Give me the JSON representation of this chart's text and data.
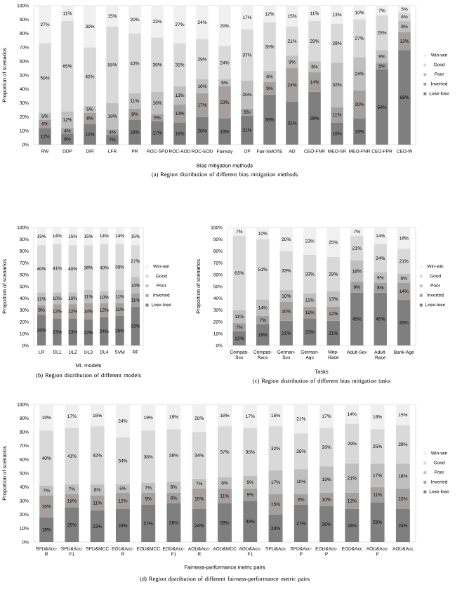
{
  "chart_data": [
    {
      "type": "bar",
      "stacked": true,
      "legend": "right",
      "title": "(a) Region distribution of different bias mitigation methods",
      "xlabel": "Bias mitigation methods",
      "ylabel": "Proportion of scenarios",
      "ylim": [
        0,
        100
      ],
      "yticks": [
        {
          "value": 0,
          "label": "0%"
        },
        {
          "value": 10,
          "label": "10%"
        },
        {
          "value": 20,
          "label": "20%"
        },
        {
          "value": 30,
          "label": "30%"
        },
        {
          "value": 40,
          "label": "40%"
        },
        {
          "value": 50,
          "label": "50%"
        },
        {
          "value": 60,
          "label": "60%"
        },
        {
          "value": 70,
          "label": "70%"
        },
        {
          "value": 80,
          "label": "80%"
        },
        {
          "value": 90,
          "label": "90%"
        },
        {
          "value": 100,
          "label": "100%"
        }
      ],
      "categories": [
        "RW",
        "DDP",
        "DIR",
        "LFR",
        "PR",
        "ROC-SPD",
        "ROC-AOD",
        "ROC-EOD",
        "Fairway",
        "OP",
        "Fair-SMOTE",
        "AD",
        "CEO-FNR",
        "MEO-SR",
        "MEO-FNR",
        "CEO-FPR",
        "CEO-W"
      ],
      "series": [
        {
          "name": "Lose-lose",
          "color": "#7f7f7f",
          "values": [
            12,
            8,
            15,
            7,
            18,
            17,
            16,
            20,
            19,
            21,
            36,
            31,
            38,
            16,
            19,
            54,
            68
          ],
          "value_labels": [
            "12%",
            "8%",
            "15%",
            "7%",
            "18%",
            "17%",
            "16%",
            "20%",
            "19%",
            "21%",
            "36%",
            "31%",
            "38%",
            "16%",
            "19%",
            "54%",
            "68%"
          ]
        },
        {
          "name": "Inverted",
          "color": "#a69f9f",
          "values": [
            6,
            4,
            8,
            4,
            8,
            5,
            13,
            17,
            23,
            5,
            9,
            24,
            14,
            11,
            20,
            5,
            13
          ],
          "value_labels": [
            "6%",
            "4%",
            "8%",
            "4%",
            "8%",
            "5%",
            "13%",
            "17%",
            "23%",
            "5%",
            "9%",
            "24%",
            "14%",
            "11%",
            "20%",
            "5%",
            "13%"
          ]
        },
        {
          "name": "Poor",
          "color": "#bfbfbf",
          "values": [
            5,
            12,
            5,
            19,
            11,
            16,
            13,
            10,
            5,
            20,
            8,
            9,
            8,
            32,
            24,
            9,
            8
          ],
          "value_labels": [
            "5%",
            "12%",
            "5%",
            "19%",
            "11%",
            "16%",
            "13%",
            "10%",
            "5%",
            "20%",
            "8%",
            "9%",
            "8%",
            "32%",
            "24%",
            "9%",
            "8%"
          ]
        },
        {
          "name": "Good",
          "color": "#d9d9d9",
          "values": [
            50,
            65,
            42,
            55,
            43,
            39,
            31,
            29,
            24,
            37,
            35,
            21,
            29,
            28,
            27,
            25,
            6
          ],
          "value_labels": [
            "50%",
            "65%",
            "42%",
            "55%",
            "43%",
            "39%",
            "31%",
            "29%",
            "24%",
            "37%",
            "35%",
            "21%",
            "29%",
            "28%",
            "27%",
            "25%",
            "6%"
          ]
        },
        {
          "name": "Win-win",
          "color": "#f0f0f0",
          "values": [
            27,
            11,
            30,
            15,
            20,
            23,
            27,
            24,
            29,
            17,
            12,
            15,
            11,
            13,
            10,
            7,
            5
          ],
          "value_labels": [
            "27%",
            "11%",
            "30%",
            "15%",
            "20%",
            "23%",
            "27%",
            "24%",
            "29%",
            "17%",
            "12%",
            "15%",
            "11%",
            "13%",
            "10%",
            "7%",
            "5%"
          ]
        }
      ]
    },
    {
      "type": "bar",
      "stacked": true,
      "legend": "right",
      "title": "(b) Region distribution of different models",
      "xlabel": "ML models",
      "ylabel": "Proportion of scenarios",
      "ylim": [
        0,
        100
      ],
      "yticks": [
        {
          "value": 0,
          "label": "0%"
        },
        {
          "value": 10,
          "label": "10%"
        },
        {
          "value": 20,
          "label": "20%"
        },
        {
          "value": 30,
          "label": "30%"
        },
        {
          "value": 40,
          "label": "40%"
        },
        {
          "value": 50,
          "label": "50%"
        },
        {
          "value": 60,
          "label": "60%"
        },
        {
          "value": 70,
          "label": "70%"
        },
        {
          "value": 80,
          "label": "80%"
        },
        {
          "value": 90,
          "label": "90%"
        },
        {
          "value": 100,
          "label": "100%"
        }
      ],
      "categories": [
        "LR",
        "DL1",
        "DL2",
        "DL3",
        "DL4",
        "SVM",
        "RF"
      ],
      "series": [
        {
          "name": "Lose-lose",
          "color": "#7f7f7f",
          "values": [
            26,
            23,
            23,
            22,
            24,
            25,
            33
          ],
          "value_labels": [
            "26%",
            "23%",
            "23%",
            "22%",
            "24%",
            "25%",
            "33%"
          ]
        },
        {
          "name": "Inverted",
          "color": "#a69f9f",
          "values": [
            8,
            12,
            12,
            14,
            12,
            11,
            11
          ],
          "value_labels": [
            "8%",
            "12%",
            "12%",
            "14%",
            "12%",
            "11%",
            "11%"
          ]
        },
        {
          "name": "Poor",
          "color": "#bfbfbf",
          "values": [
            11,
            10,
            10,
            11,
            10,
            11,
            14
          ],
          "value_labels": [
            "11%",
            "10%",
            "10%",
            "11%",
            "10%",
            "11%",
            "14%"
          ]
        },
        {
          "name": "Good",
          "color": "#d9d9d9",
          "values": [
            40,
            41,
            40,
            38,
            40,
            39,
            27
          ],
          "value_labels": [
            "40%",
            "41%",
            "40%",
            "38%",
            "40%",
            "39%",
            "27%"
          ]
        },
        {
          "name": "Win-win",
          "color": "#f0f0f0",
          "values": [
            15,
            14,
            15,
            15,
            14,
            14,
            15
          ],
          "value_labels": [
            "15%",
            "14%",
            "15%",
            "15%",
            "14%",
            "14%",
            "15%"
          ]
        }
      ]
    },
    {
      "type": "bar",
      "stacked": true,
      "legend": "right",
      "title": "(c) Region distribution of different bias mitigation tasks",
      "xlabel": "Tasks",
      "ylabel": "Proportion of scenarios",
      "ylim": [
        0,
        100
      ],
      "yticks": [
        {
          "value": 0,
          "label": "0%"
        },
        {
          "value": 10,
          "label": "10%"
        },
        {
          "value": 20,
          "label": "20%"
        },
        {
          "value": 30,
          "label": "30%"
        },
        {
          "value": 40,
          "label": "40%"
        },
        {
          "value": 50,
          "label": "50%"
        },
        {
          "value": 60,
          "label": "60%"
        },
        {
          "value": 70,
          "label": "70%"
        },
        {
          "value": 80,
          "label": "80%"
        },
        {
          "value": 90,
          "label": "90%"
        },
        {
          "value": 100,
          "label": "100%"
        }
      ],
      "categories": [
        "Compas-Sex",
        "Compas-Race",
        "German-Sex",
        "German-Age",
        "Mep-Race",
        "Adult-Sex",
        "Adult-Race",
        "Bank-Age"
      ],
      "series": [
        {
          "name": "Lose-lose",
          "color": "#7f7f7f",
          "values": [
            12,
            18,
            21,
            23,
            21,
            45,
            45,
            39
          ],
          "value_labels": [
            "12%",
            "18%",
            "21%",
            "23%",
            "21%",
            "45%",
            "45%",
            "39%"
          ]
        },
        {
          "name": "Inverted",
          "color": "#a69f9f",
          "values": [
            7,
            7,
            16,
            10,
            12,
            9,
            8,
            14
          ],
          "value_labels": [
            "7%",
            "7%",
            "16%",
            "10%",
            "12%",
            "9%",
            "8%",
            "14%"
          ]
        },
        {
          "name": "Poor",
          "color": "#bfbfbf",
          "values": [
            11,
            14,
            10,
            11,
            13,
            18,
            9,
            8
          ],
          "value_labels": [
            "11%",
            "14%",
            "10%",
            "11%",
            "13%",
            "18%",
            "9%",
            "8%"
          ]
        },
        {
          "name": "Good",
          "color": "#d9d9d9",
          "values": [
            63,
            51,
            33,
            33,
            29,
            21,
            24,
            21
          ],
          "value_labels": [
            "63%",
            "51%",
            "33%",
            "33%",
            "29%",
            "21%",
            "24%",
            "21%"
          ]
        },
        {
          "name": "Win-win",
          "color": "#f0f0f0",
          "values": [
            7,
            10,
            20,
            23,
            25,
            7,
            14,
            18
          ],
          "value_labels": [
            "7%",
            "10%",
            "20%",
            "23%",
            "25%",
            "7%",
            "14%",
            "18%"
          ]
        }
      ]
    },
    {
      "type": "bar",
      "stacked": true,
      "legend": "right",
      "title": "(d) Region distribution of different fairness-performance metric pairs",
      "xlabel": "Fairness-performance metric pairs",
      "ylabel": "Proportion of scenarios",
      "ylim": [
        0,
        100
      ],
      "yticks": [
        {
          "value": 0,
          "label": "0%"
        },
        {
          "value": 10,
          "label": "10%"
        },
        {
          "value": 20,
          "label": "20%"
        },
        {
          "value": 30,
          "label": "30%"
        },
        {
          "value": 40,
          "label": "40%"
        },
        {
          "value": 50,
          "label": "50%"
        },
        {
          "value": 60,
          "label": "60%"
        },
        {
          "value": 70,
          "label": "70%"
        },
        {
          "value": 80,
          "label": "80%"
        },
        {
          "value": 90,
          "label": "90%"
        },
        {
          "value": 100,
          "label": "100%"
        }
      ],
      "categories": [
        "SPD&Acc-R",
        "SPD&Acc-F1",
        "SPD&MCC",
        "EOD&Acc-R",
        "EOD&MCC",
        "EOD&Acc-F1",
        "AOD&Acc-R",
        "AOD&MCC",
        "AOD&Acc-F1",
        "SPD&Acc",
        "SPD&Acc-P",
        "EOD&Acc-P",
        "EOD&Acc",
        "AOD&Acc-P",
        "AOD&Acc"
      ],
      "series": [
        {
          "name": "Lose-lose",
          "color": "#7f7f7f",
          "values": [
            18,
            25,
            23,
            24,
            27,
            28,
            24,
            28,
            30,
            20,
            27,
            26,
            24,
            29,
            24
          ],
          "value_labels": [
            "18%",
            "25%",
            "23%",
            "24%",
            "27%",
            "28%",
            "24%",
            "28%",
            "30%",
            "20%",
            "27%",
            "26%",
            "24%",
            "29%",
            "24%"
          ]
        },
        {
          "name": "Inverted",
          "color": "#a69f9f",
          "values": [
            16,
            10,
            11,
            12,
            9,
            8,
            15,
            11,
            9,
            15,
            8,
            10,
            12,
            11,
            15
          ],
          "value_labels": [
            "16%",
            "10%",
            "11%",
            "12%",
            "9%",
            "8%",
            "15%",
            "11%",
            "9%",
            "15%",
            "8%",
            "10%",
            "12%",
            "11%",
            "15%"
          ]
        },
        {
          "name": "Poor",
          "color": "#bfbfbf",
          "values": [
            7,
            7,
            8,
            6,
            7,
            8,
            7,
            8,
            9,
            17,
            18,
            19,
            21,
            17,
            18
          ],
          "value_labels": [
            "7%",
            "7%",
            "8%",
            "6%",
            "7%",
            "8%",
            "7%",
            "8%",
            "9%",
            "17%",
            "18%",
            "19%",
            "21%",
            "17%",
            "18%"
          ]
        },
        {
          "name": "Good",
          "color": "#d9d9d9",
          "values": [
            40,
            41,
            42,
            34,
            38,
            38,
            34,
            37,
            35,
            32,
            26,
            28,
            29,
            25,
            28
          ],
          "value_labels": [
            "40%",
            "41%",
            "42%",
            "34%",
            "38%",
            "38%",
            "34%",
            "37%",
            "35%",
            "32%",
            "26%",
            "28%",
            "29%",
            "25%",
            "28%"
          ]
        },
        {
          "name": "Win-win",
          "color": "#f0f0f0",
          "values": [
            19,
            17,
            16,
            24,
            19,
            18,
            20,
            16,
            17,
            16,
            21,
            17,
            14,
            18,
            15
          ],
          "value_labels": [
            "19%",
            "17%",
            "16%",
            "24%",
            "19%",
            "18%",
            "20%",
            "16%",
            "17%",
            "16%",
            "21%",
            "17%",
            "14%",
            "18%",
            "15%"
          ]
        }
      ]
    }
  ]
}
